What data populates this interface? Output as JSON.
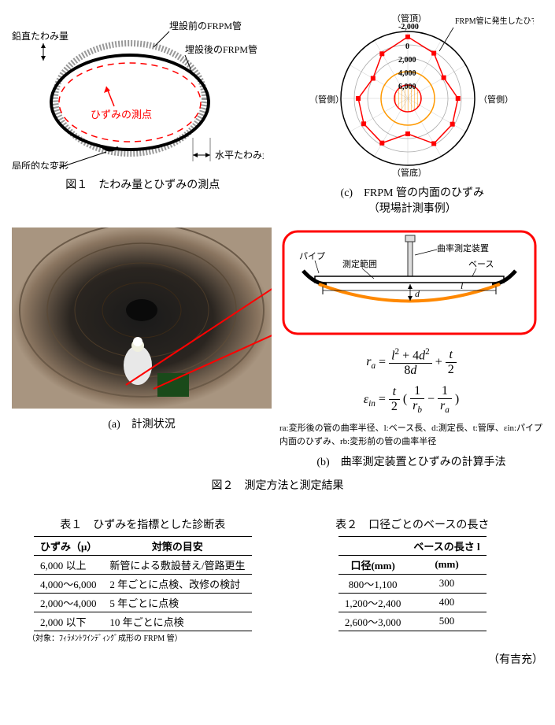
{
  "fig1": {
    "labels": {
      "vertical_deflection": "鉛直たわみ量",
      "before_burial": "埋設前のFRPM管",
      "after_burial": "埋設後のFRPM管",
      "strain_point": "ひずみの測点",
      "horizontal_deflection": "水平たわみ量",
      "local_deformation": "局所的な変形"
    },
    "caption": "図１　たわみ量とひずみの測点",
    "colors": {
      "outer_pipe": "#999999",
      "inner_pipe": "#000000",
      "strain_line": "#ff0000",
      "arrow": "#ff0000"
    }
  },
  "fig2c": {
    "labels": {
      "top": "（管頂）",
      "side_left": "（管側）",
      "side_right": "（管側）",
      "bottom": "（管底）",
      "legend": "FRPM管に発生したひずみ"
    },
    "ticks": [
      "-2,000",
      "0",
      "2,000",
      "4,000",
      "6,000"
    ],
    "series_color": "#ff0000",
    "rings_color": "#ff9900",
    "caption_c": "(c)　FRPM 管の内面のひずみ",
    "caption_sub": "（現場計測事例）",
    "data_angles_deg": [
      0,
      30,
      60,
      90,
      120,
      150,
      180,
      210,
      240,
      270,
      300,
      330
    ],
    "data_values": [
      -1200,
      200,
      1800,
      500,
      300,
      200,
      2700,
      300,
      400,
      600,
      2000,
      300
    ]
  },
  "fig2a": {
    "caption": "(a)　計測状況"
  },
  "fig2b": {
    "labels": {
      "pipe": "パイプ",
      "range": "測定範囲",
      "device": "曲率測定装置",
      "base": "ベース",
      "l": "l",
      "d": "d"
    },
    "caption": "(b)　曲率測定装置とひずみの計算手法",
    "box_color": "#ff0000",
    "arc_color": "#ff8800",
    "line_color": "#000000"
  },
  "fig2_main_caption": "図２　測定方法と測定結果",
  "formula_legend": "ra:変形後の管の曲率半径、l:ベース長、d:測定長、t:管厚、εin:パイプ内面のひずみ、rb:変形前の管の曲率半径",
  "table1": {
    "title": "表１　ひずみを指標とした診断表",
    "headers": [
      "ひずみ（μ）",
      "対策の目安"
    ],
    "rows": [
      [
        "6,000 以上",
        "新管による敷設替え/管路更生"
      ],
      [
        "4,000～6,000",
        "2 年ごとに点検、改修の検討"
      ],
      [
        "2,000～4,000",
        "5 年ごとに点検"
      ],
      [
        "2,000 以下",
        "10 年ごとに点検"
      ]
    ],
    "note": "（対象：ﾌｨﾗﾒﾝﾄﾜｲﾝﾃﾞｨﾝｸﾞ成形の FRPM 管）"
  },
  "table2": {
    "title": "表２　口径ごとのベースの長さ",
    "sub_header": "ベースの長さ l",
    "headers": [
      "口径(mm)",
      "(mm)"
    ],
    "rows": [
      [
        "800～1,100",
        "300"
      ],
      [
        "1,200～2,400",
        "400"
      ],
      [
        "2,600～3,000",
        "500"
      ]
    ]
  },
  "author": "（有吉充）"
}
